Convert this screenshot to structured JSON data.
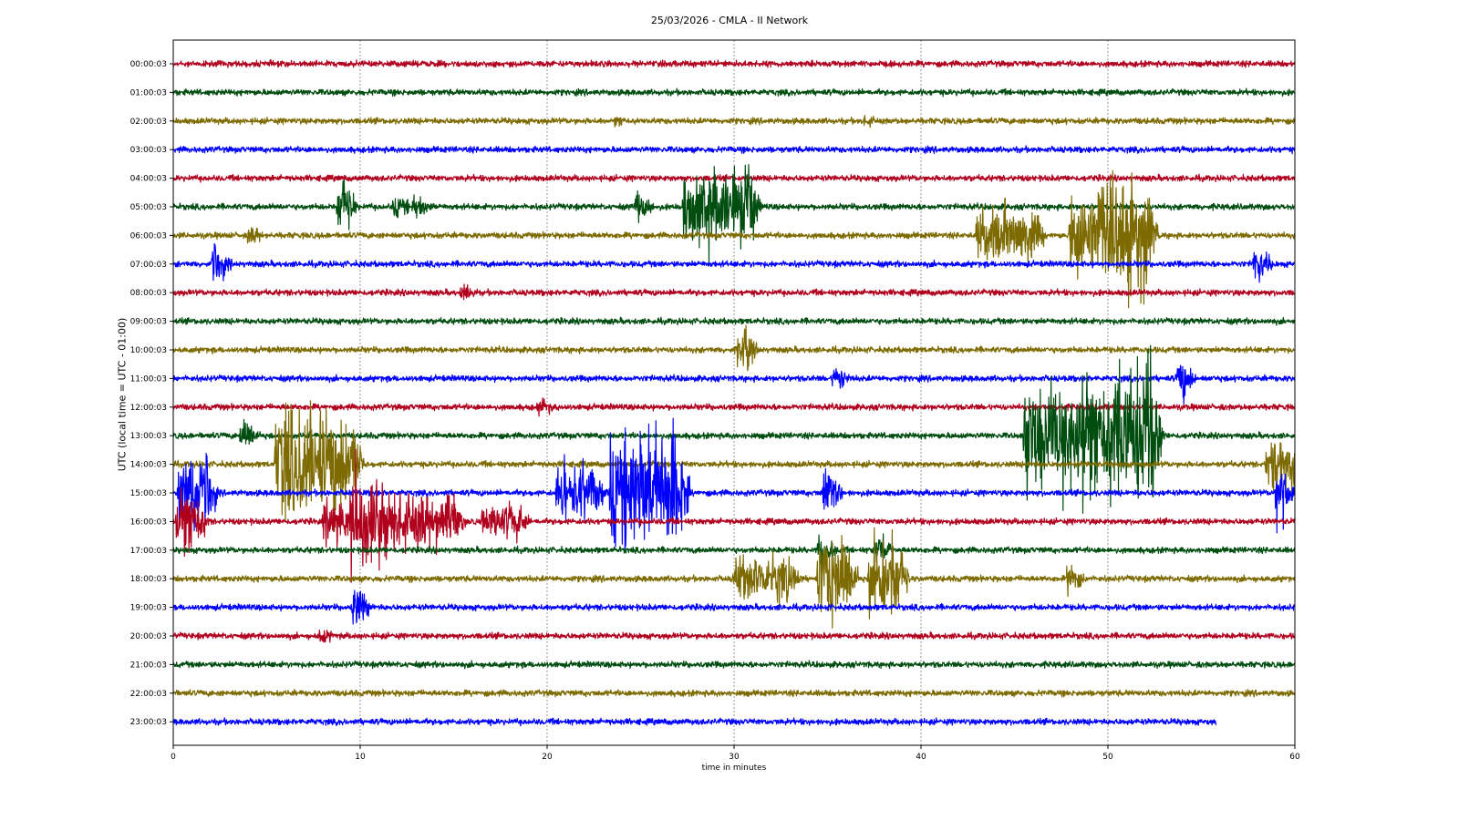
{
  "chart_data": {
    "type": "line",
    "title": "25/03/2026 - CMLA - II Network",
    "xlabel": "time in minutes",
    "ylabel": "UTC (local time = UTC - 01:00)",
    "xlim": [
      0,
      60
    ],
    "xticks": [
      "0",
      "10",
      "20",
      "30",
      "40",
      "50",
      "60"
    ],
    "grid": "vertical dotted lines at x ticks",
    "line_colors": [
      "#b0001e",
      "#004d10",
      "#7d6a00",
      "#0000ff"
    ],
    "rows": [
      {
        "label": "00:00:03",
        "events": []
      },
      {
        "label": "01:00:03",
        "events": []
      },
      {
        "label": "02:00:03",
        "events": [
          {
            "t": 23.6,
            "amp": 0.6
          },
          {
            "t": 36.9,
            "amp": 0.5
          }
        ]
      },
      {
        "label": "03:00:03",
        "events": []
      },
      {
        "label": "04:00:03",
        "events": []
      },
      {
        "label": "05:00:03",
        "events": [
          {
            "t": 8.8,
            "amp": 2.6
          },
          {
            "t": 11.8,
            "amp": 1.1
          },
          {
            "t": 12.8,
            "amp": 1.1
          },
          {
            "t": 24.7,
            "amp": 1.4
          },
          {
            "t": 27.3,
            "amp": 3.5,
            "dur": 3.5
          }
        ]
      },
      {
        "label": "06:00:03",
        "events": [
          {
            "t": 4.0,
            "amp": 0.8
          },
          {
            "t": 43.0,
            "amp": 2.5,
            "dur": 3.0
          },
          {
            "t": 48.0,
            "amp": 5.0,
            "dur": 4.0
          }
        ]
      },
      {
        "label": "07:00:03",
        "events": [
          {
            "t": 2.1,
            "amp": 1.8
          },
          {
            "t": 57.8,
            "amp": 1.6
          }
        ]
      },
      {
        "label": "08:00:03",
        "events": [
          {
            "t": 15.4,
            "amp": 0.8
          }
        ]
      },
      {
        "label": "09:00:03",
        "events": []
      },
      {
        "label": "10:00:03",
        "events": [
          {
            "t": 30.2,
            "amp": 2.1
          }
        ]
      },
      {
        "label": "11:00:03",
        "events": [
          {
            "t": 35.3,
            "amp": 1.0
          },
          {
            "t": 53.7,
            "amp": 1.9
          }
        ]
      },
      {
        "label": "12:00:03",
        "events": [
          {
            "t": 19.5,
            "amp": 0.8
          }
        ]
      },
      {
        "label": "13:00:03",
        "events": [
          {
            "t": 3.6,
            "amp": 1.5
          },
          {
            "t": 45.5,
            "amp": 5.0,
            "dur": 2.5
          },
          {
            "t": 48.3,
            "amp": 6.5,
            "dur": 4.0
          }
        ]
      },
      {
        "label": "14:00:03",
        "events": [
          {
            "t": 5.5,
            "amp": 5.0,
            "dur": 4.0
          },
          {
            "t": 58.5,
            "amp": 2.5,
            "dur": 1.5
          }
        ]
      },
      {
        "label": "15:00:03",
        "events": [
          {
            "t": 0.3,
            "amp": 3.5,
            "dur": 1.5
          },
          {
            "t": 20.5,
            "amp": 2.5,
            "dur": 2.0
          },
          {
            "t": 23.4,
            "amp": 5.5,
            "dur": 1.5
          },
          {
            "t": 25.0,
            "amp": 5.5,
            "dur": 2.0
          },
          {
            "t": 34.8,
            "amp": 2.0
          },
          {
            "t": 59.0,
            "amp": 2.5
          }
        ]
      },
      {
        "label": "16:00:03",
        "events": [
          {
            "t": 0.2,
            "amp": 3.5,
            "dur": 1.0
          },
          {
            "t": 8.0,
            "amp": 2.0,
            "dur": 1.0
          },
          {
            "t": 9.5,
            "amp": 4.5,
            "dur": 1.5
          },
          {
            "t": 11.0,
            "amp": 2.5,
            "dur": 4.0
          },
          {
            "t": 16.5,
            "amp": 1.5,
            "dur": 2.0
          }
        ]
      },
      {
        "label": "17:00:03",
        "events": [
          {
            "t": 34.5,
            "amp": 1.5
          },
          {
            "t": 37.5,
            "amp": 1.5
          }
        ]
      },
      {
        "label": "18:00:03",
        "events": [
          {
            "t": 30.0,
            "amp": 2.0,
            "dur": 3.0
          },
          {
            "t": 34.5,
            "amp": 4.0,
            "dur": 1.5
          },
          {
            "t": 37.2,
            "amp": 4.0,
            "dur": 1.5
          },
          {
            "t": 47.8,
            "amp": 1.3
          }
        ]
      },
      {
        "label": "19:00:03",
        "events": [
          {
            "t": 9.6,
            "amp": 1.8
          }
        ]
      },
      {
        "label": "20:00:03",
        "events": [
          {
            "t": 7.8,
            "amp": 0.6
          }
        ]
      },
      {
        "label": "21:00:03",
        "events": []
      },
      {
        "label": "22:00:03",
        "events": []
      },
      {
        "label": "23:00:03",
        "events": [],
        "end": 55.8
      }
    ]
  }
}
